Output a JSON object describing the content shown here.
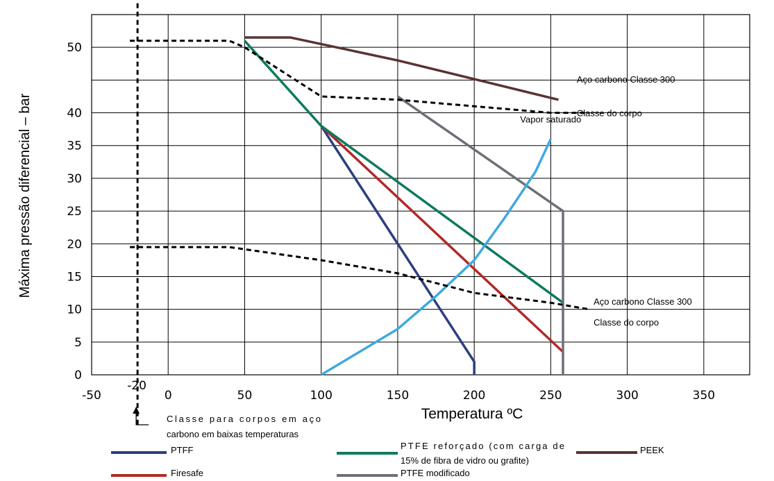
{
  "chart_data": {
    "type": "line",
    "xlabel": "Temperatura ºC",
    "ylabel": "Máxima pressão diferencial – bar",
    "xlim": [
      -50,
      380
    ],
    "ylim": [
      0,
      55
    ],
    "x_ticks": [
      -50,
      0,
      50,
      100,
      150,
      200,
      250,
      300,
      350
    ],
    "x_tick_labels": [
      "-50",
      "0",
      "50",
      "100",
      "150",
      "200",
      "250",
      "300",
      "350"
    ],
    "y_ticks": [
      0,
      5,
      10,
      15,
      20,
      25,
      30,
      35,
      40,
      45,
      50
    ],
    "y_tick_labels": [
      "0",
      "5",
      "10",
      "15",
      "20",
      "25",
      "30",
      "35",
      "40",
      "",
      "50"
    ],
    "grid": true,
    "low_temp_marker": {
      "x": -20,
      "label": "-20",
      "color": "#b5544a"
    },
    "series": [
      {
        "name": "PTFF",
        "color": "#2b3f7f",
        "dash": false,
        "x": [
          100,
          200,
          200
        ],
        "y": [
          38,
          2,
          0
        ]
      },
      {
        "name": "Firesafe",
        "color": "#b02a28",
        "dash": false,
        "x": [
          100,
          258
        ],
        "y": [
          38,
          3.5
        ]
      },
      {
        "name": "PTFE reforçado (com carga de 15% de fibra de vidro ou grafite)",
        "color": "#0d7a5e",
        "dash": false,
        "x": [
          50,
          100,
          258
        ],
        "y": [
          51,
          38,
          11
        ]
      },
      {
        "name": "PTFE modificado",
        "color": "#6e6e78",
        "dash": false,
        "x": [
          150,
          258,
          258
        ],
        "y": [
          42.5,
          25,
          0
        ]
      },
      {
        "name": "PEEK",
        "color": "#5a3232",
        "dash": false,
        "x": [
          50,
          80,
          150,
          255
        ],
        "y": [
          51.5,
          51.5,
          48,
          42
        ]
      },
      {
        "name": "",
        "color": "#3fa9e0",
        "dash": false,
        "x": [
          100,
          125,
          150,
          175,
          200,
          220,
          240,
          250
        ],
        "y": [
          0,
          3.5,
          7,
          12,
          17.5,
          24,
          31,
          36
        ]
      },
      {
        "name": "",
        "color": "#000000",
        "dash": true,
        "x": [
          -25,
          40,
          50,
          100,
          150,
          200,
          250,
          275
        ],
        "y": [
          51,
          51,
          50,
          42.5,
          42,
          41,
          40,
          40
        ]
      },
      {
        "name": "",
        "color": "#000000",
        "dash": true,
        "x": [
          -25,
          40,
          100,
          150,
          200,
          250,
          275
        ],
        "y": [
          19.5,
          19.5,
          17.5,
          15.5,
          12.5,
          11,
          10
        ]
      },
      {
        "name": "",
        "color": "#000000",
        "dash": true,
        "x": [
          -20,
          -20
        ],
        "y": [
          58,
          -8
        ]
      }
    ],
    "annotations": [
      {
        "id": "aco-classe-300-upper",
        "text": "Aço carbono Classe 300",
        "x": 267,
        "y": 44.6
      },
      {
        "id": "classe-corpo-upper",
        "text": "Classe do corpo",
        "x": 267,
        "y": 39.5
      },
      {
        "id": "vapor-saturado",
        "text": "Vapor saturado",
        "x": 230,
        "y": 38.5
      },
      {
        "id": "aco-classe-300-lower",
        "text": "Aço carbono Classe 300",
        "x": 278,
        "y": 10.7
      },
      {
        "id": "classe-corpo-lower",
        "text": "Classe do corpo",
        "x": 278,
        "y": 7.5
      }
    ],
    "bracket_note": [
      "Classe  para  corpos  em  aço",
      "carbono em baixas temperaturas"
    ],
    "legend": [
      {
        "lines": [
          "PTFF"
        ],
        "color": "#2b3f7f"
      },
      {
        "lines": [
          "Firesafe"
        ],
        "color": "#b02a28"
      },
      {
        "lines": [
          "PTFE  reforçado  (com  carga  de",
          "15% de fibra de vidro ou grafite)"
        ],
        "color": "#0d7a5e"
      },
      {
        "lines": [
          "PTFE modificado"
        ],
        "color": "#6e6e78"
      },
      {
        "lines": [
          "PEEK"
        ],
        "color": "#5a3232"
      }
    ]
  }
}
